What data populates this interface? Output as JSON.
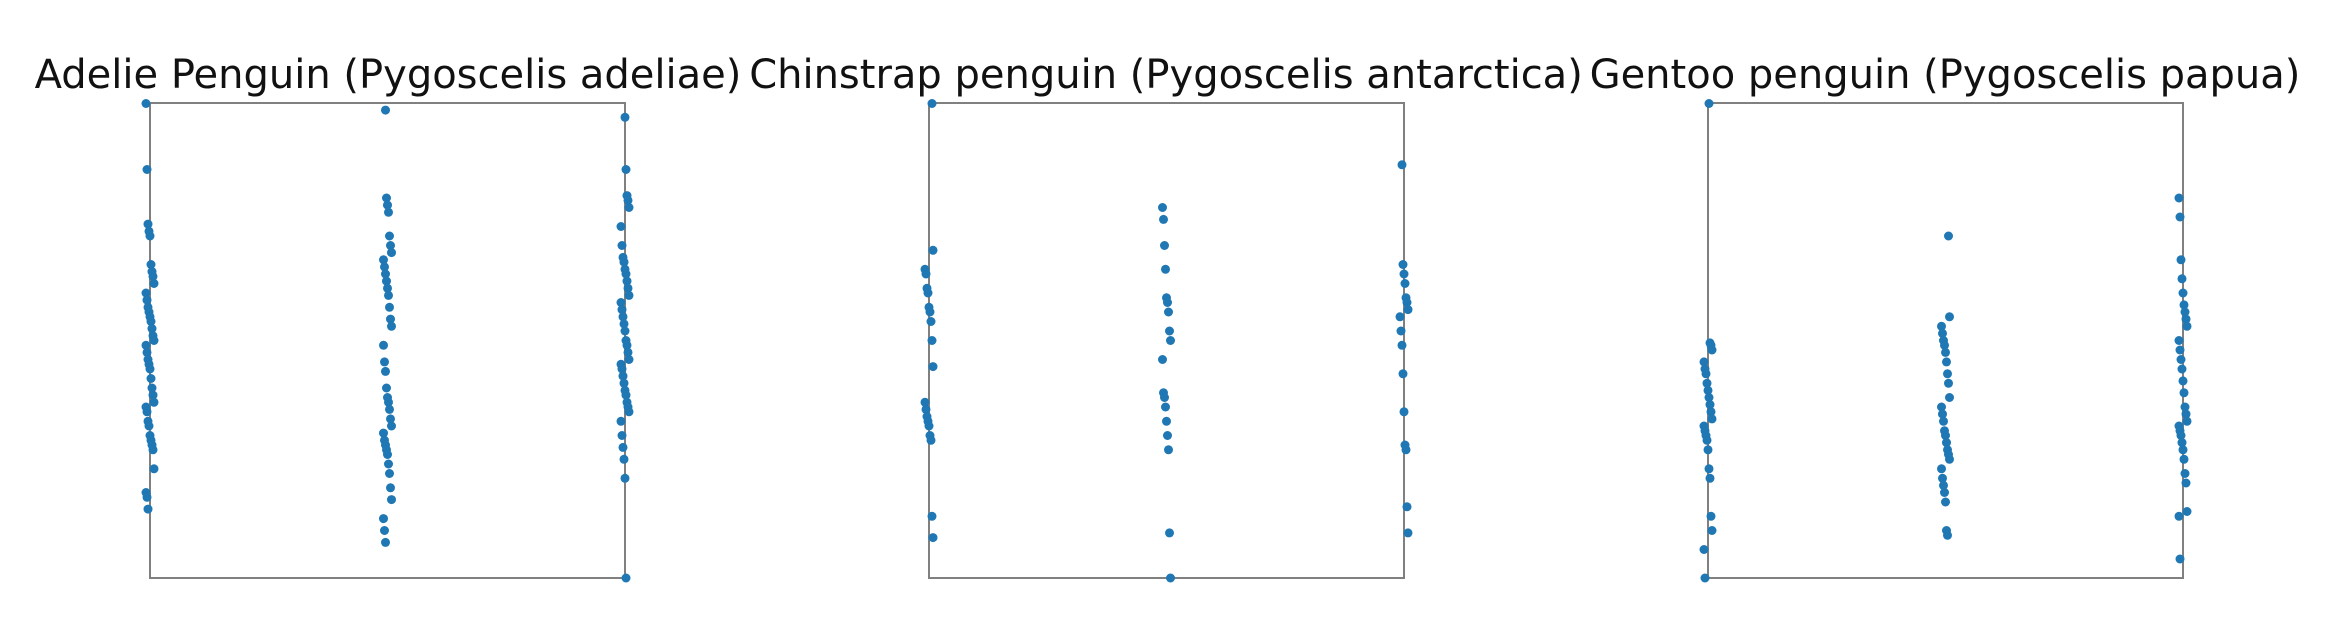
{
  "figure": {
    "point_color": "#1f77b4",
    "frame_color": "#808080"
  },
  "chart_data": [
    {
      "type": "scatter",
      "title": "Adelie Penguin (Pygoscelis adeliae)",
      "xlabel": "",
      "ylabel": "",
      "grid": false,
      "x_range": [
        0,
        1
      ],
      "y_range": [
        0,
        1
      ],
      "strips": [
        {
          "x": 0,
          "y": [
            0.999,
            0.86,
            0.745,
            0.73,
            0.72,
            0.66,
            0.645,
            0.635,
            0.62,
            0.6,
            0.585,
            0.57,
            0.56,
            0.55,
            0.54,
            0.525,
            0.51,
            0.5,
            0.49,
            0.475,
            0.46,
            0.45,
            0.44,
            0.42,
            0.4,
            0.385,
            0.37,
            0.36,
            0.35,
            0.33,
            0.32,
            0.3,
            0.29,
            0.28,
            0.27,
            0.23,
            0.18,
            0.17,
            0.145
          ]
        },
        {
          "x": 0.5,
          "y": [
            0.985,
            0.8,
            0.785,
            0.77,
            0.72,
            0.7,
            0.685,
            0.67,
            0.655,
            0.64,
            0.625,
            0.61,
            0.595,
            0.57,
            0.545,
            0.53,
            0.49,
            0.455,
            0.435,
            0.4,
            0.38,
            0.37,
            0.355,
            0.335,
            0.32,
            0.305,
            0.29,
            0.28,
            0.27,
            0.26,
            0.24,
            0.22,
            0.19,
            0.165,
            0.125,
            0.1,
            0.075
          ]
        },
        {
          "x": 1,
          "y": [
            0.97,
            0.86,
            0.805,
            0.795,
            0.78,
            0.74,
            0.7,
            0.675,
            0.665,
            0.65,
            0.64,
            0.625,
            0.61,
            0.595,
            0.58,
            0.565,
            0.55,
            0.535,
            0.52,
            0.5,
            0.49,
            0.475,
            0.46,
            0.45,
            0.44,
            0.425,
            0.41,
            0.395,
            0.385,
            0.37,
            0.36,
            0.35,
            0.33,
            0.3,
            0.275,
            0.25,
            0.21,
            0.0
          ]
        }
      ]
    },
    {
      "type": "scatter",
      "title": "Chinstrap penguin (Pygoscelis antarctica)",
      "xlabel": "",
      "ylabel": "",
      "grid": false,
      "x_range": [
        0,
        1
      ],
      "y_range": [
        0,
        1
      ],
      "strips": [
        {
          "x": 0,
          "y": [
            0.999,
            0.69,
            0.65,
            0.64,
            0.61,
            0.6,
            0.57,
            0.56,
            0.54,
            0.5,
            0.445,
            0.37,
            0.355,
            0.34,
            0.33,
            0.32,
            0.3,
            0.29,
            0.13,
            0.085
          ]
        },
        {
          "x": 0.5,
          "y": [
            0.78,
            0.755,
            0.7,
            0.65,
            0.59,
            0.58,
            0.56,
            0.52,
            0.5,
            0.46,
            0.39,
            0.38,
            0.36,
            0.33,
            0.3,
            0.27,
            0.095,
            0.0
          ]
        },
        {
          "x": 1,
          "y": [
            0.87,
            0.66,
            0.64,
            0.62,
            0.59,
            0.58,
            0.565,
            0.55,
            0.52,
            0.49,
            0.43,
            0.35,
            0.28,
            0.27,
            0.15,
            0.095
          ]
        }
      ]
    },
    {
      "type": "scatter",
      "title": "Gentoo penguin (Pygoscelis papua)",
      "xlabel": "",
      "ylabel": "",
      "grid": false,
      "x_range": [
        0,
        1
      ],
      "y_range": [
        0,
        1
      ],
      "strips": [
        {
          "x": 0,
          "y": [
            0.999,
            0.495,
            0.49,
            0.48,
            0.455,
            0.44,
            0.43,
            0.41,
            0.395,
            0.38,
            0.365,
            0.35,
            0.335,
            0.32,
            0.31,
            0.3,
            0.29,
            0.27,
            0.23,
            0.21,
            0.13,
            0.1,
            0.06,
            0.0
          ]
        },
        {
          "x": 0.5,
          "y": [
            0.72,
            0.55,
            0.53,
            0.515,
            0.5,
            0.49,
            0.475,
            0.455,
            0.43,
            0.41,
            0.38,
            0.36,
            0.345,
            0.33,
            0.31,
            0.3,
            0.285,
            0.27,
            0.26,
            0.25,
            0.23,
            0.21,
            0.195,
            0.18,
            0.16,
            0.1,
            0.09
          ]
        },
        {
          "x": 1,
          "y": [
            0.8,
            0.76,
            0.67,
            0.63,
            0.6,
            0.575,
            0.56,
            0.545,
            0.53,
            0.5,
            0.48,
            0.46,
            0.44,
            0.415,
            0.39,
            0.36,
            0.345,
            0.33,
            0.32,
            0.31,
            0.3,
            0.285,
            0.27,
            0.25,
            0.22,
            0.2,
            0.14,
            0.13,
            0.04
          ]
        }
      ]
    }
  ]
}
